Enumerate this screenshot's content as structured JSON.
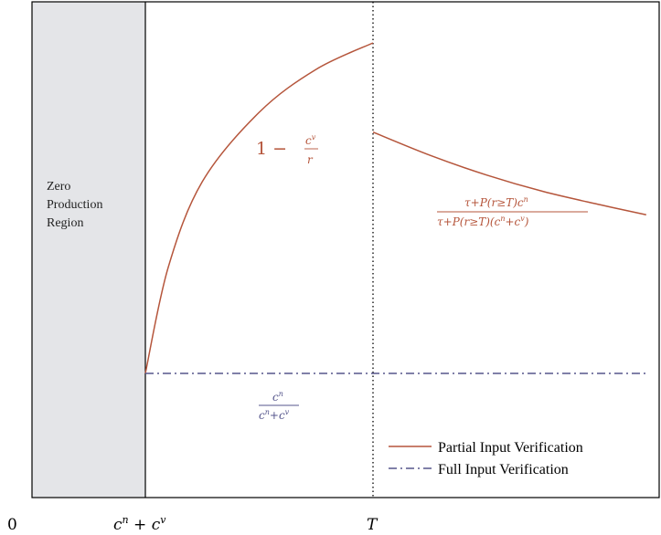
{
  "chart_data": {
    "type": "line",
    "title": "",
    "xlabel": "",
    "ylabel": "",
    "x_ticks": [
      "0",
      "c",
      "T"
    ],
    "x_tick_math": {
      "zero": "0",
      "cn_plus_cv": {
        "c1": "c",
        "sup1": "n",
        "plus": " + ",
        "c2": "c",
        "sup2": "v"
      },
      "T": "T"
    },
    "regions": [
      {
        "label_lines": [
          "Zero",
          "Production",
          "Region"
        ],
        "x_range": [
          0,
          1
        ],
        "color": "#e4e5e8"
      }
    ],
    "series": [
      {
        "name": "Partial Input Verification",
        "color": "#b5553b",
        "style": "solid",
        "segments": [
          {
            "x": [
              1.0,
              1.2,
              1.5,
              2.0,
              2.5,
              3.0
            ],
            "y": [
              0.0,
              0.32,
              0.58,
              0.79,
              0.92,
              1.0
            ]
          },
          {
            "x": [
              3.0,
              3.5,
              4.0,
              4.5,
              5.0,
              5.4
            ],
            "y": [
              0.73,
              0.66,
              0.6,
              0.55,
              0.51,
              0.48
            ]
          }
        ]
      },
      {
        "name": "Full Input Verification",
        "color": "#56568c",
        "style": "dashdot",
        "segments": [
          {
            "x": [
              1.0,
              5.4
            ],
            "y": [
              0.0,
              0.0
            ]
          }
        ]
      }
    ],
    "annotations": {
      "curve1": {
        "one": "1 −",
        "num": "c",
        "num_sup": "v",
        "den": "r"
      },
      "curve2": {
        "num": "τ+P(r≥T)c",
        "num_sup": "n",
        "den": "τ+P(r≥T)(c",
        "den_sup1": "n",
        "den_mid": "+c",
        "den_sup2": "v",
        "den_end": ")"
      },
      "full": {
        "num": "c",
        "num_sup": "n",
        "den1": "c",
        "den_sup1": "n",
        "den_mid": "+c",
        "den_sup2": "v"
      }
    },
    "legend": {
      "position": "bottom-right",
      "items": [
        "Partial Input Verification",
        "Full Input Verification"
      ]
    },
    "vertical_line": {
      "at": "T",
      "style": "dotted"
    },
    "colors": {
      "partial": "#b5553b",
      "full": "#56568c",
      "region": "#e4e5e8",
      "axes": "#000000"
    }
  }
}
